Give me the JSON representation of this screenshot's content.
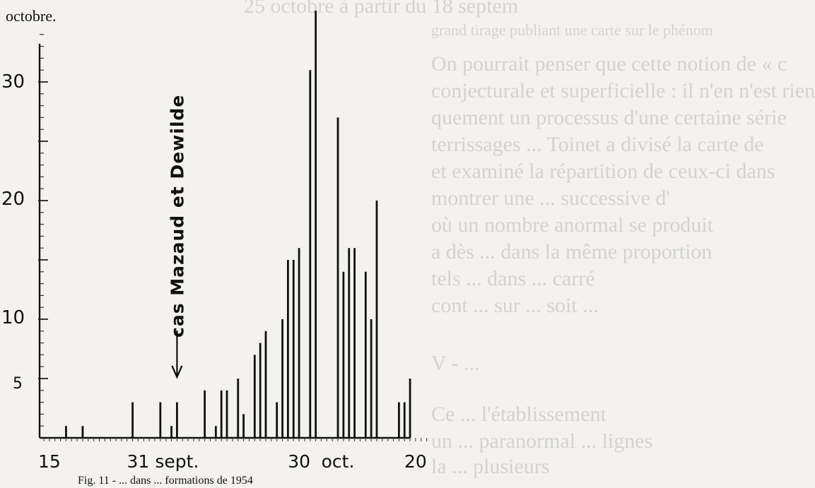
{
  "page": {
    "top_line": "octobre.",
    "caption": "Fig. 11 - ... dans ... formations de 1954",
    "background_text": [
      "25 octobre à partir du 18 septem",
      "grand tirage publiant une carte sur le phénom",
      "On pourrait penser que cette notion de « c",
      "conjecturale et superficielle : il n'en n'est rien",
      "quement un processus d'une certaine série",
      "terrissages ... Toinet a divisé la carte de",
      "et examiné la répartition de ceux-ci dans",
      "montrer une ... successive d'",
      "où un nombre anormal se produit",
      "a dès ... dans la même proportion",
      "tels ... dans ... carré",
      "cont ... sur ... soit ...",
      "V - ...",
      "Ce ... l'établissement",
      "un ... paranormal ... lignes",
      "la ... plusieurs"
    ]
  },
  "chart_data": {
    "type": "bar",
    "title": "",
    "xlabel": "",
    "ylabel": "",
    "ylim": [
      0,
      35
    ],
    "y_ticks": [
      5,
      10,
      20,
      30
    ],
    "y_tick_labels": [
      "5",
      "10",
      "20",
      "30"
    ],
    "x_tick_labels": [
      {
        "label": "15",
        "day": 1
      },
      {
        "label": "31",
        "day": 17
      },
      {
        "label": "sept.",
        "day": 24
      },
      {
        "label": "30",
        "day": 46
      },
      {
        "label": "oct.",
        "day": 53
      },
      {
        "label": "20",
        "day": 67
      }
    ],
    "x_range_days": [
      0,
      69
    ],
    "annotation": {
      "text": "cas Mazaud et Dewilde",
      "day": 24
    },
    "values": [
      0,
      0,
      0,
      0,
      1,
      0,
      0,
      1,
      0,
      0,
      0,
      0,
      0,
      0,
      0,
      0,
      3,
      0,
      0,
      0,
      0,
      3,
      0,
      1,
      3,
      0,
      0,
      0,
      0,
      4,
      0,
      1,
      4,
      4,
      0,
      5,
      2,
      0,
      7,
      8,
      9,
      0,
      3,
      10,
      15,
      15,
      16,
      0,
      31,
      36,
      0,
      0,
      0,
      27,
      14,
      16,
      16,
      0,
      14,
      10,
      20,
      0,
      0,
      0,
      3,
      3,
      5
    ]
  }
}
